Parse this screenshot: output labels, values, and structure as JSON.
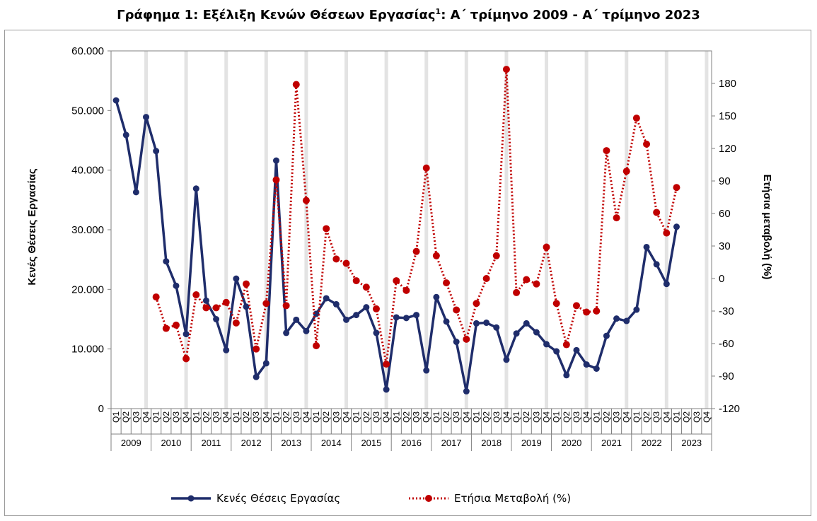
{
  "title": {
    "prefix": "Γράφημα 1: Εξέλιξη Κενών Θέσεων Εργασίας",
    "footnote_marker": "1",
    "suffix": ": Α΄ τρίμηνο 2009 - Α΄ τρίμηνο 2023"
  },
  "chart_data": {
    "type": "line",
    "quarters": [
      "Q1",
      "Q2",
      "Q3",
      "Q4"
    ],
    "years": [
      "2009",
      "2010",
      "2011",
      "2012",
      "2013",
      "2014",
      "2015",
      "2016",
      "2017",
      "2018",
      "2019",
      "2020",
      "2021",
      "2022",
      "2023"
    ],
    "ylabel_left": "Κενές Θέσεις Εργασίας",
    "ylabel_right": "Ετήσια μεταβολή (%)",
    "ylim_left": [
      0,
      60000
    ],
    "yticks_left": [
      "0",
      "10.000",
      "20.000",
      "30.000",
      "40.000",
      "50.000",
      "60.000"
    ],
    "ylim_right": [
      -120,
      210
    ],
    "yticks_right": [
      "-120",
      "-90",
      "-60",
      "-30",
      "0",
      "30",
      "60",
      "90",
      "120",
      "150",
      "180"
    ],
    "series": [
      {
        "name": "Κενές Θέσεις Εργασίας",
        "axis": "left",
        "color": "#1f2d6b",
        "style": "solid",
        "values": [
          51700,
          45900,
          36300,
          48900,
          43200,
          24700,
          20600,
          12500,
          36900,
          18100,
          15000,
          9800,
          21800,
          17100,
          5300,
          7600,
          41600,
          12700,
          14900,
          13000,
          15900,
          18500,
          17500,
          14900,
          15700,
          17000,
          12700,
          3200,
          15300,
          15200,
          15700,
          6400,
          18700,
          14600,
          11200,
          2900,
          14300,
          14400,
          13600,
          8200,
          12600,
          14300,
          12800,
          10800,
          9600,
          5600,
          9800,
          7400,
          6700,
          12200,
          15100,
          14700,
          16600,
          27100,
          24200,
          20900,
          30500,
          null,
          null,
          null
        ]
      },
      {
        "name": "Ετήσια Μεταβολή  (%)",
        "axis": "right",
        "color": "#c00000",
        "style": "dotted",
        "values": [
          null,
          null,
          null,
          null,
          -17,
          -46,
          -43,
          -74,
          -15,
          -27,
          -27,
          -22,
          -41,
          -5,
          -65,
          -23,
          91,
          -25,
          179,
          72,
          -62,
          46,
          18,
          14,
          -2,
          -8,
          -28,
          -79,
          -2,
          -11,
          25,
          102,
          21,
          -4,
          -29,
          -56,
          -23,
          0,
          21,
          193,
          -13,
          -1,
          -5,
          29,
          -23,
          -61,
          -25,
          -31,
          -30,
          118,
          56,
          99,
          148,
          124,
          61,
          42,
          84,
          null,
          null,
          null
        ]
      }
    ],
    "legend_position": "bottom"
  }
}
